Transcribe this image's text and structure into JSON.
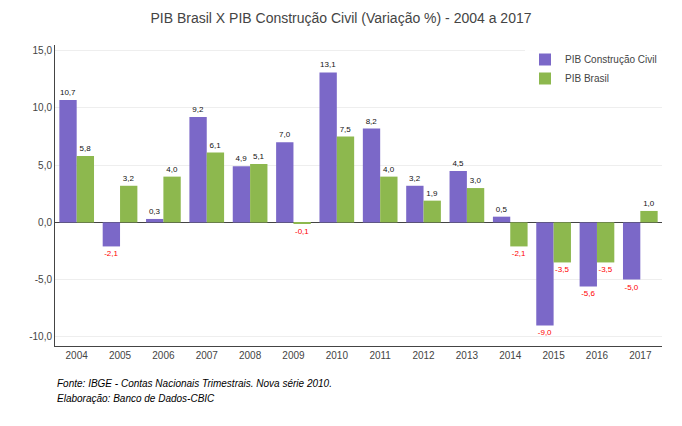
{
  "chart_data": {
    "type": "bar",
    "title": "PIB Brasil X PIB Construção Civil (Variação %) - 2004 a 2017",
    "categories": [
      "2004",
      "2005",
      "2006",
      "2007",
      "2008",
      "2009",
      "2010",
      "2011",
      "2012",
      "2013",
      "2014",
      "2015",
      "2016",
      "2017"
    ],
    "series": [
      {
        "name": "PIB Construção Civil",
        "color": "#7B68C8",
        "values": [
          10.7,
          -2.1,
          0.3,
          9.2,
          4.9,
          7.0,
          13.1,
          8.2,
          3.2,
          4.5,
          0.5,
          -9.0,
          -5.6,
          -5.0
        ],
        "value_labels": [
          "10,7",
          "-2,1",
          "0,3",
          "9,2",
          "4,9",
          "7,0",
          "13,1",
          "8,2",
          "3,2",
          "4,5",
          "0,5",
          "-9,0",
          "-5,6",
          "-5,0"
        ]
      },
      {
        "name": "PIB Brasil",
        "color": "#8DB84E",
        "values": [
          5.8,
          3.2,
          4.0,
          6.1,
          5.1,
          -0.1,
          7.5,
          4.0,
          1.9,
          3.0,
          -2.1,
          -3.5,
          -3.5,
          1.0
        ],
        "value_labels": [
          "5,8",
          "3,2",
          "4,0",
          "6,1",
          "5,1",
          "-0,1",
          "7,5",
          "4,0",
          "1,9",
          "3,0",
          "-2,1",
          "-3,5",
          "-3,5",
          "1,0"
        ]
      }
    ],
    "ylim": [
      -10.8,
      15.5
    ],
    "yticks": [
      {
        "value": -10.0,
        "label": "-10,0"
      },
      {
        "value": -5.0,
        "label": "-5,0"
      },
      {
        "value": 0.0,
        "label": "0,0"
      },
      {
        "value": 5.0,
        "label": "5,0"
      },
      {
        "value": 10.0,
        "label": "10,0"
      },
      {
        "value": 15.0,
        "label": "15,0"
      }
    ],
    "annotations": [
      "Fonte: IBGE - Contas Nacionais Trimestrais. Nova série 2010.",
      "Elaboração: Banco de Dados-CBIC"
    ],
    "data_labels": true,
    "grid": true,
    "legend": "upper right"
  }
}
